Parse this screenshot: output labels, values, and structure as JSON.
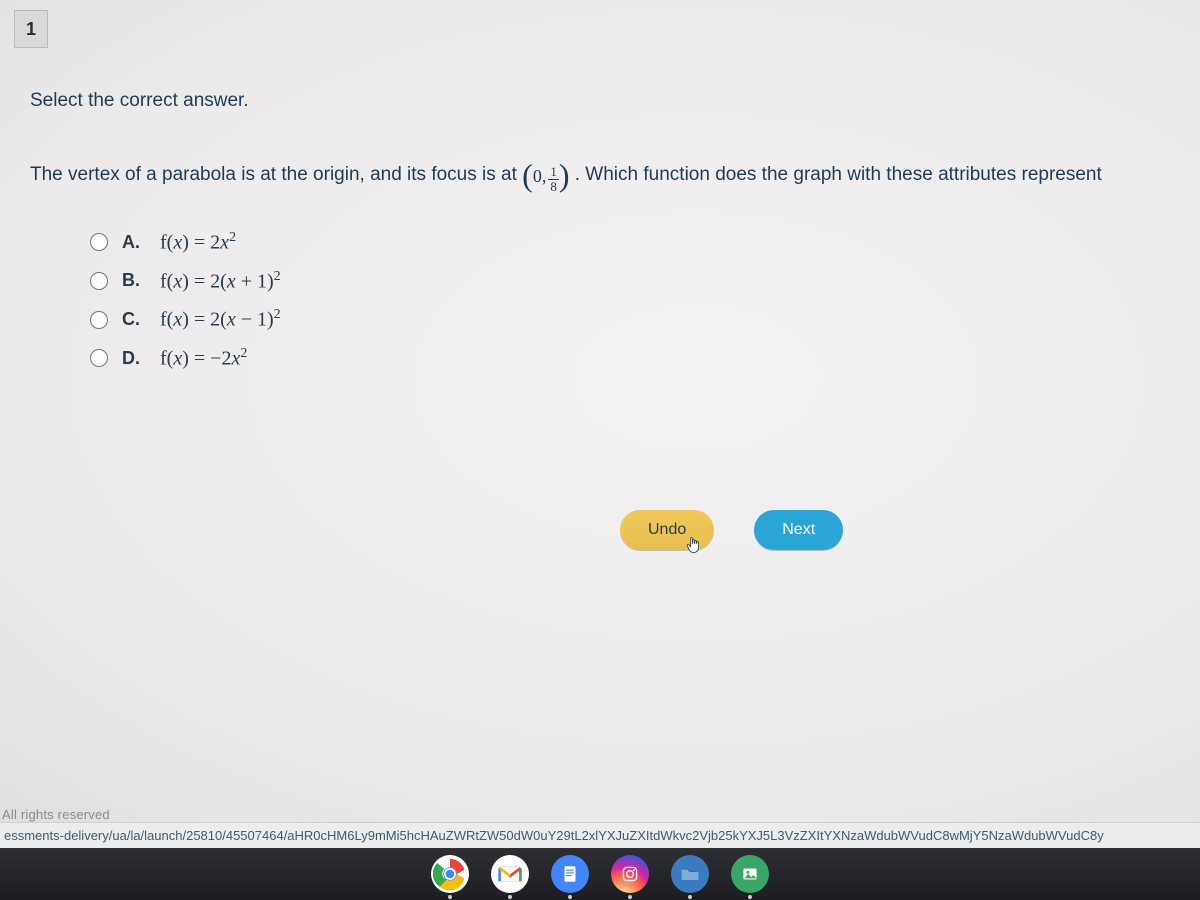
{
  "question": {
    "number": "1",
    "instruction": "Select the correct answer.",
    "prompt_before": "The vertex of a parabola is at the origin, and its focus is at ",
    "focus_x": "0",
    "focus_num": "1",
    "focus_den": "8",
    "prompt_after": ". Which function does the graph with these attributes represent"
  },
  "options": [
    {
      "letter": "A.",
      "math_html": "<span class='rm'>f(</span>x<span class='rm'>) = 2</span>x<sup>2</sup>"
    },
    {
      "letter": "B.",
      "math_html": "<span class='rm'>f(</span>x<span class='rm'>) = 2(</span>x<span class='rm'> + 1)</span><sup>2</sup>"
    },
    {
      "letter": "C.",
      "math_html": "<span class='rm'>f(</span>x<span class='rm'>) = 2(</span>x<span class='rm'> − 1)</span><sup>2</sup>"
    },
    {
      "letter": "D.",
      "math_html": "<span class='rm'>f(</span>x<span class='rm'>) = −2</span>x<sup>2</sup>"
    }
  ],
  "buttons": {
    "undo": "Undo",
    "next": "Next"
  },
  "footer": {
    "rights": "All rights reserved",
    "url": "essments-delivery/ua/la/launch/25810/45507464/aHR0cHM6Ly9mMi5hcHAuZWRtZW50dW0uY29tL2xlYXJuZXItdWkvc2Vjb25kYXJ5L3VzZXItYXNzaWdubWVudC8wMjY5NzaWdubWVudC8y"
  },
  "colors": {
    "text": "#2a3b4a",
    "undo_bg": "#e8bf4f",
    "next_bg": "#2aa6d6",
    "taskbar_bg": "#222428"
  },
  "taskbar": {
    "icons": [
      {
        "name": "chrome-icon"
      },
      {
        "name": "gmail-icon"
      },
      {
        "name": "docs-icon"
      },
      {
        "name": "instagram-icon"
      },
      {
        "name": "files-icon"
      },
      {
        "name": "gallery-icon"
      }
    ]
  }
}
